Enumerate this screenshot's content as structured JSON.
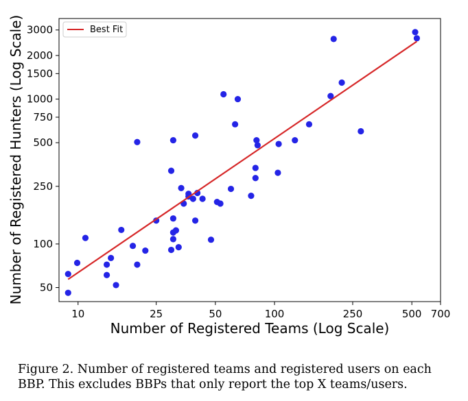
{
  "chart_data": {
    "type": "scatter",
    "xlabel": "Number of Registered Teams (Log Scale)",
    "ylabel": "Number of Registered Hunters (Log Scale)",
    "xscale": "log",
    "yscale": "log",
    "xlim": [
      8,
      700
    ],
    "ylim": [
      40,
      3600
    ],
    "xticks": [
      10,
      25,
      50,
      100,
      250,
      500,
      700
    ],
    "yticks": [
      50,
      100,
      250,
      500,
      750,
      1000,
      1500,
      2000,
      3000
    ],
    "grid": false,
    "legend": {
      "position": "top-left",
      "entries": [
        "Best Fit"
      ]
    },
    "colors": {
      "points": "#2424e6",
      "fit": "#d62728"
    },
    "series": [
      {
        "type": "scatter",
        "points": [
          [
            8.9,
            62
          ],
          [
            8.9,
            46
          ],
          [
            9.9,
            74
          ],
          [
            10.9,
            110
          ],
          [
            14.0,
            72
          ],
          [
            14.0,
            61
          ],
          [
            14.7,
            80
          ],
          [
            15.6,
            52
          ],
          [
            16.6,
            125
          ],
          [
            19.0,
            97
          ],
          [
            20.0,
            72
          ],
          [
            20.0,
            505
          ],
          [
            22.0,
            90
          ],
          [
            25.0,
            145
          ],
          [
            29.8,
            320
          ],
          [
            29.8,
            91
          ],
          [
            30.5,
            150
          ],
          [
            30.5,
            520
          ],
          [
            30.5,
            120
          ],
          [
            30.5,
            108
          ],
          [
            31.5,
            124
          ],
          [
            32.5,
            95
          ],
          [
            33.5,
            243
          ],
          [
            34.5,
            190
          ],
          [
            36.5,
            222
          ],
          [
            36.5,
            213
          ],
          [
            38.5,
            205
          ],
          [
            39.5,
            145
          ],
          [
            39.5,
            560
          ],
          [
            40.5,
            225
          ],
          [
            43.0,
            205
          ],
          [
            47.5,
            107
          ],
          [
            51.0,
            195
          ],
          [
            53.0,
            190
          ],
          [
            55.0,
            1080
          ],
          [
            60.0,
            240
          ],
          [
            63.0,
            670
          ],
          [
            65.0,
            1000
          ],
          [
            76.0,
            215
          ],
          [
            80.0,
            335
          ],
          [
            80.0,
            285
          ],
          [
            81.0,
            520
          ],
          [
            82.0,
            480
          ],
          [
            104.0,
            310
          ],
          [
            105.0,
            490
          ],
          [
            127.0,
            520
          ],
          [
            150.0,
            670
          ],
          [
            193.0,
            1050
          ],
          [
            200.0,
            2600
          ],
          [
            220.0,
            1300
          ],
          [
            275.0,
            600
          ],
          [
            520.0,
            2900
          ],
          [
            530.0,
            2630
          ]
        ]
      },
      {
        "type": "line",
        "name": "Best Fit",
        "points": [
          [
            8.9,
            57
          ],
          [
            530.0,
            2500
          ]
        ]
      }
    ]
  },
  "caption": "Figure 2. Number of registered teams and registered users on each BBP. This excludes BBPs that only report the top X teams/users."
}
